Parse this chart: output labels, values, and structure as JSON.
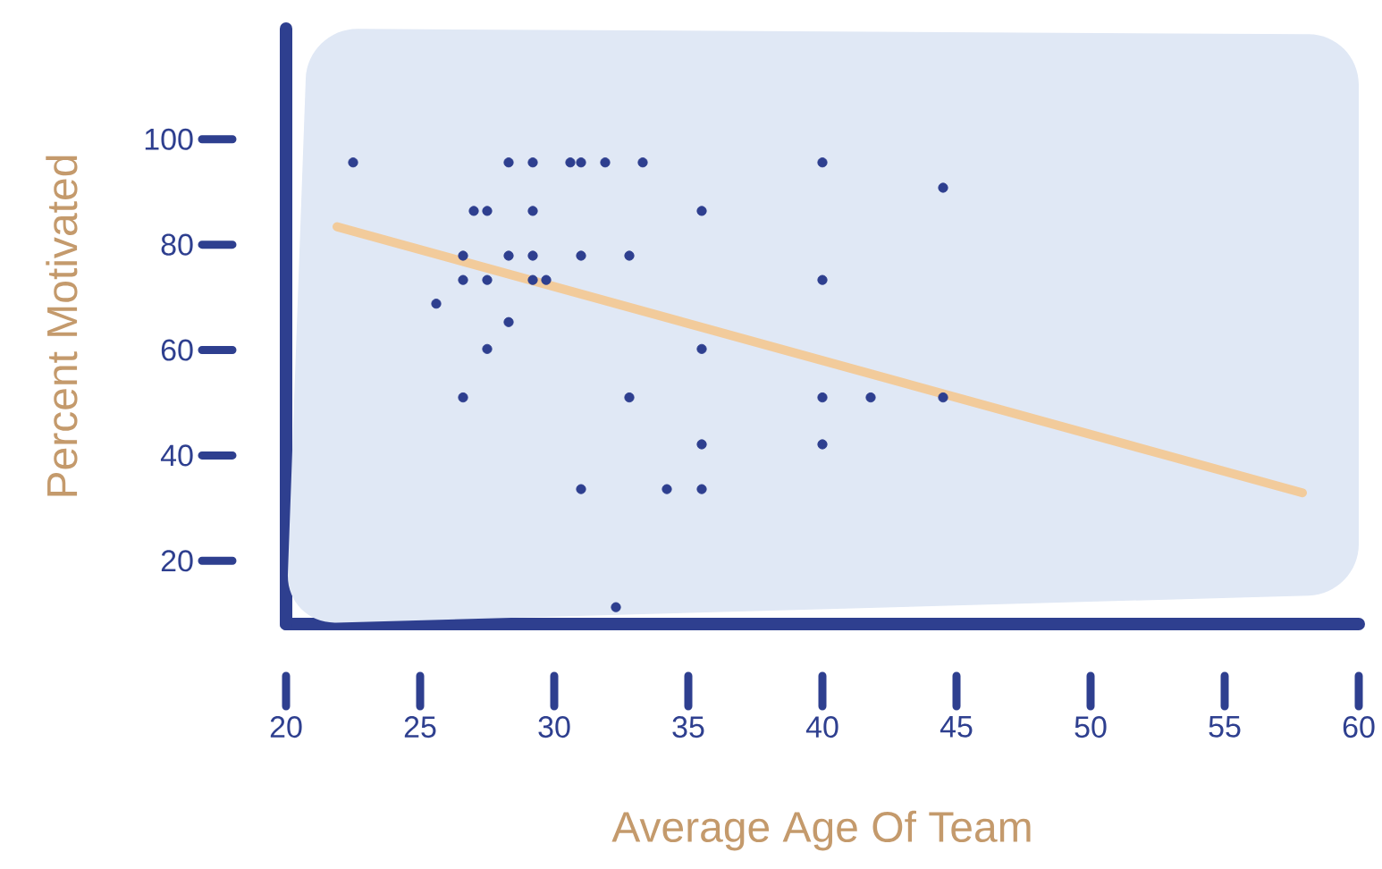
{
  "chart_data": {
    "type": "scatter",
    "xlabel": "Average Age Of Team",
    "ylabel": "Percent Motivated",
    "xlim": [
      20,
      60
    ],
    "ylim": [
      8,
      121
    ],
    "xticks": [
      20,
      25,
      30,
      35,
      40,
      45,
      50,
      55,
      60
    ],
    "yticks": [
      20,
      40,
      60,
      80,
      100
    ],
    "grid": false,
    "series": [
      {
        "marker": "circle",
        "color": "#2e3f8f",
        "x": [
          22.5,
          28.3,
          29.2,
          30.6,
          31.0,
          31.9,
          33.3,
          40.0,
          44.5,
          27.0,
          27.5,
          29.2,
          35.5,
          26.6,
          28.3,
          29.2,
          31.0,
          32.8,
          26.6,
          27.5,
          29.2,
          29.7,
          40.0,
          25.6,
          28.3,
          27.5,
          35.5,
          26.6,
          32.8,
          40.0,
          41.8,
          44.5,
          35.5,
          40.0,
          31.0,
          34.2,
          35.5,
          32.3
        ],
        "values": [
          95.6,
          95.6,
          95.6,
          95.6,
          95.6,
          95.6,
          95.6,
          95.6,
          90.8,
          86.4,
          86.4,
          86.4,
          86.4,
          77.9,
          77.9,
          77.9,
          77.9,
          77.9,
          73.3,
          73.3,
          73.3,
          73.3,
          73.3,
          68.8,
          65.3,
          60.2,
          60.2,
          51.0,
          51.0,
          51.0,
          51.0,
          51.0,
          42.1,
          42.1,
          33.6,
          33.6,
          33.6,
          11.2
        ]
      },
      {
        "type": "line",
        "marker": "none",
        "color": "#f2cb9b",
        "x": [
          21.9,
          57.9
        ],
        "values": [
          83.4,
          32.9
        ]
      }
    ]
  }
}
